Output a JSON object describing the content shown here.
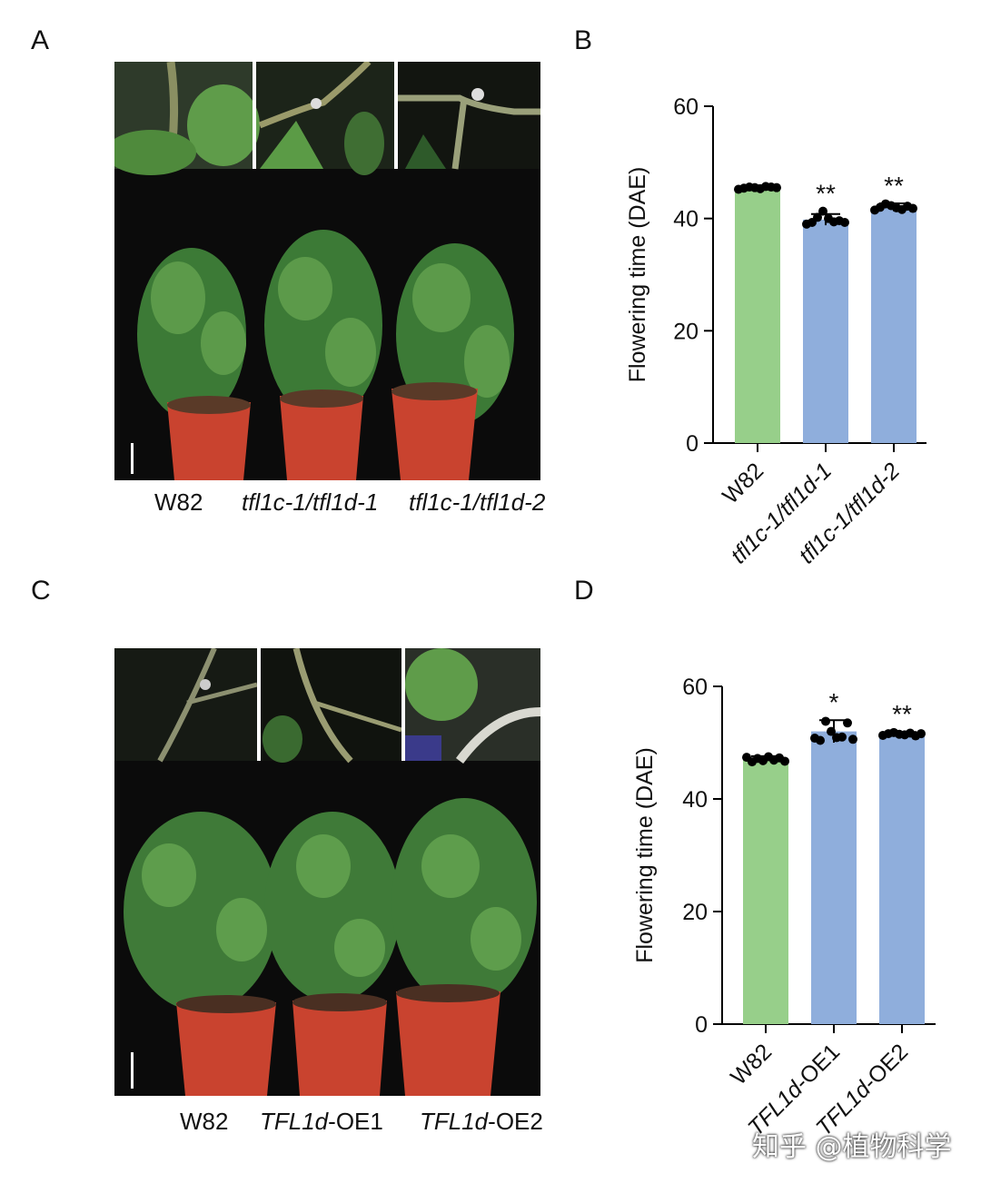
{
  "panels": {
    "a": "A",
    "b": "B",
    "c": "C",
    "d": "D"
  },
  "photo_a": {
    "labels": [
      {
        "parts": [
          {
            "text": "W82",
            "italic": false
          }
        ]
      },
      {
        "parts": [
          {
            "text": "tfl1c-1/tfl1d-1",
            "italic": true
          }
        ]
      },
      {
        "parts": [
          {
            "text": "tfl1c-1/tfl1d-2",
            "italic": true
          }
        ]
      }
    ]
  },
  "photo_c": {
    "labels": [
      {
        "parts": [
          {
            "text": "W82",
            "italic": false
          }
        ]
      },
      {
        "parts": [
          {
            "text": "TFL1d",
            "italic": true
          },
          {
            "text": "-OE1",
            "italic": false
          }
        ]
      },
      {
        "parts": [
          {
            "text": "TFL1d",
            "italic": true
          },
          {
            "text": "-OE2",
            "italic": false
          }
        ]
      }
    ]
  },
  "colors": {
    "green_bar": "#97cf8a",
    "blue_bar": "#8faedc",
    "pot": "#c9432f",
    "leaf": "#3f7a3a"
  },
  "watermark": "知乎 @植物科学",
  "chart_data": [
    {
      "panel": "B",
      "type": "bar",
      "ylabel": "Flowering time (DAE)",
      "ylim": [
        0,
        60
      ],
      "yticks": [
        0,
        20,
        40,
        60
      ],
      "categories": [
        {
          "parts": [
            {
              "text": "W82",
              "italic": false
            }
          ]
        },
        {
          "parts": [
            {
              "text": "tfl1c-1/tfl1d-1",
              "italic": true
            }
          ]
        },
        {
          "parts": [
            {
              "text": "tfl1c-1/tfl1d-2",
              "italic": true
            }
          ]
        }
      ],
      "values": [
        45.5,
        39.8,
        42.0
      ],
      "errors": [
        0.4,
        1.0,
        0.7
      ],
      "significance": [
        "",
        "**",
        "**"
      ],
      "bar_colors": [
        "green_bar",
        "blue_bar",
        "blue_bar"
      ],
      "points": [
        [
          45.2,
          45.4,
          45.6,
          45.5,
          45.3,
          45.7,
          45.6,
          45.5
        ],
        [
          39.0,
          39.3,
          40.2,
          41.3,
          40.0,
          39.4,
          39.6,
          39.3
        ],
        [
          41.5,
          42.0,
          42.6,
          42.3,
          41.9,
          41.6,
          42.2,
          41.8
        ]
      ]
    },
    {
      "panel": "D",
      "type": "bar",
      "ylabel": "Flowering time (DAE)",
      "ylim": [
        0,
        60
      ],
      "yticks": [
        0,
        20,
        40,
        60
      ],
      "categories": [
        {
          "parts": [
            {
              "text": "W82",
              "italic": false
            }
          ]
        },
        {
          "parts": [
            {
              "text": "TFL1d",
              "italic": true
            },
            {
              "text": "-OE1",
              "italic": false
            }
          ]
        },
        {
          "parts": [
            {
              "text": "TFL1d",
              "italic": true
            },
            {
              "text": "-OE2",
              "italic": false
            }
          ]
        }
      ],
      "values": [
        47.0,
        52.0,
        51.5
      ],
      "errors": [
        0.6,
        2.0,
        0.4
      ],
      "significance": [
        "",
        "*",
        "**"
      ],
      "bar_colors": [
        "green_bar",
        "blue_bar",
        "blue_bar"
      ],
      "points": [
        [
          47.4,
          46.6,
          47.2,
          46.8,
          47.5,
          46.9,
          47.3,
          46.7
        ],
        [
          50.8,
          50.4,
          53.8,
          52.0,
          50.9,
          51.0,
          53.5,
          50.6
        ],
        [
          51.3,
          51.6,
          51.8,
          51.5,
          51.4,
          51.7,
          51.2,
          51.6
        ]
      ]
    }
  ]
}
